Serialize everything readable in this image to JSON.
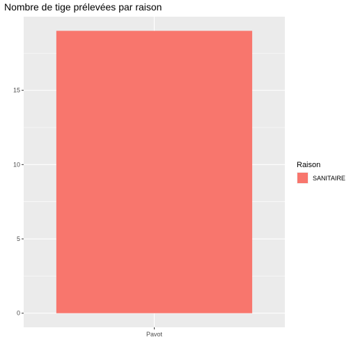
{
  "chart_data": {
    "type": "bar",
    "title": "Nombre de tige prélevées par raison",
    "xlabel": "",
    "ylabel": "",
    "categories": [
      "Pavot"
    ],
    "series": [
      {
        "name": "SANITAIRE",
        "values": [
          19
        ],
        "color": "#F8766D"
      }
    ],
    "ylim": [
      -0.95,
      19.95
    ],
    "yticks": [
      0,
      5,
      10,
      15
    ],
    "yminor": [
      2.5,
      7.5,
      12.5,
      17.5
    ],
    "grid": true,
    "panel_background": "#EBEBEB",
    "legend": {
      "title": "Raison",
      "position": "right"
    }
  }
}
